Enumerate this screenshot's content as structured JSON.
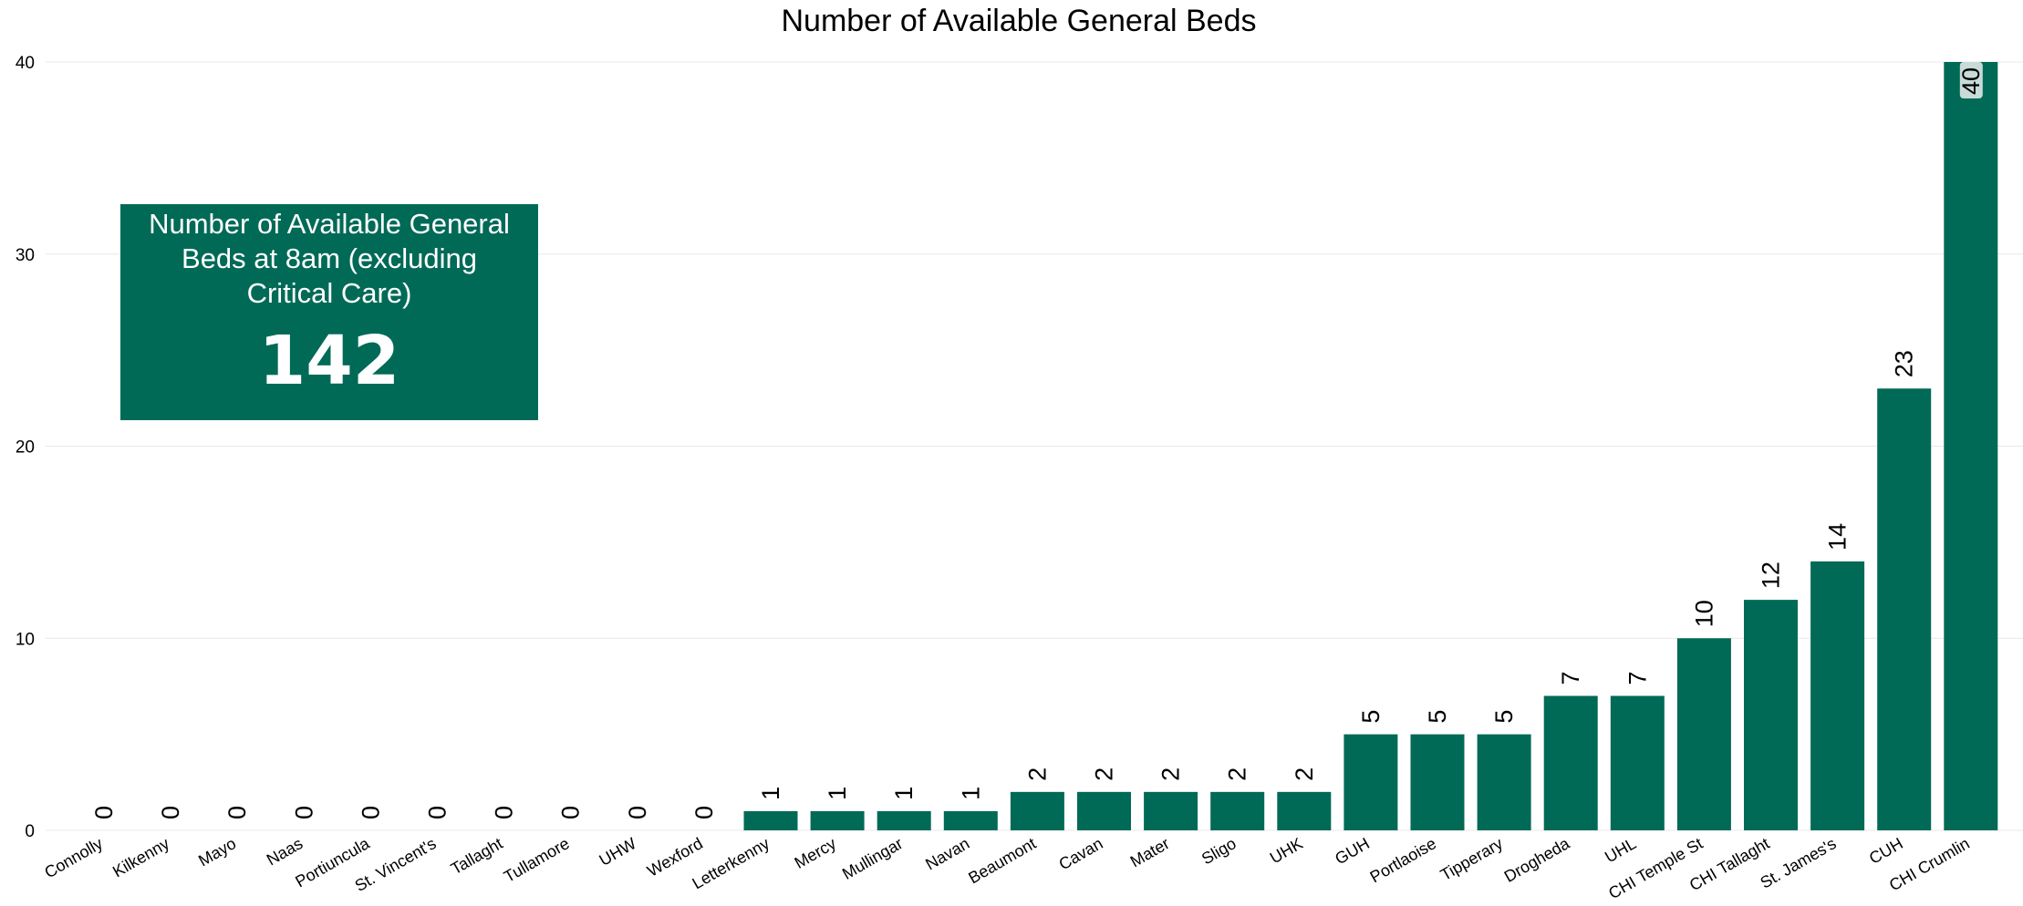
{
  "chart_data": {
    "type": "bar",
    "title": "Number of Available General Beds",
    "xlabel": "",
    "ylabel": "",
    "categories": [
      "Connolly",
      "Kilkenny",
      "Mayo",
      "Naas",
      "Portiuncula",
      "St. Vincent's",
      "Tallaght",
      "Tullamore",
      "UHW",
      "Wexford",
      "Letterkenny",
      "Mercy",
      "Mullingar",
      "Navan",
      "Beaumont",
      "Cavan",
      "Mater",
      "Sligo",
      "UHK",
      "GUH",
      "Portlaoise",
      "Tipperary",
      "Drogheda",
      "UHL",
      "CHI Temple St",
      "CHI Tallaght",
      "St. James's",
      "CUH",
      "CHI Crumlin"
    ],
    "values": [
      0,
      0,
      0,
      0,
      0,
      0,
      0,
      0,
      0,
      0,
      1,
      1,
      1,
      1,
      2,
      2,
      2,
      2,
      2,
      5,
      5,
      5,
      7,
      7,
      10,
      12,
      14,
      23,
      40
    ],
    "ylim": [
      0,
      40
    ],
    "yticks": [
      0,
      10,
      20,
      30,
      40
    ],
    "grid": true,
    "legend": "none",
    "bar_color": "#006a57",
    "data_labels": true
  },
  "kpi": {
    "label": "Number of Available General Beds at 8am (excluding Critical Care)",
    "value": "142",
    "color": "#006a57"
  }
}
